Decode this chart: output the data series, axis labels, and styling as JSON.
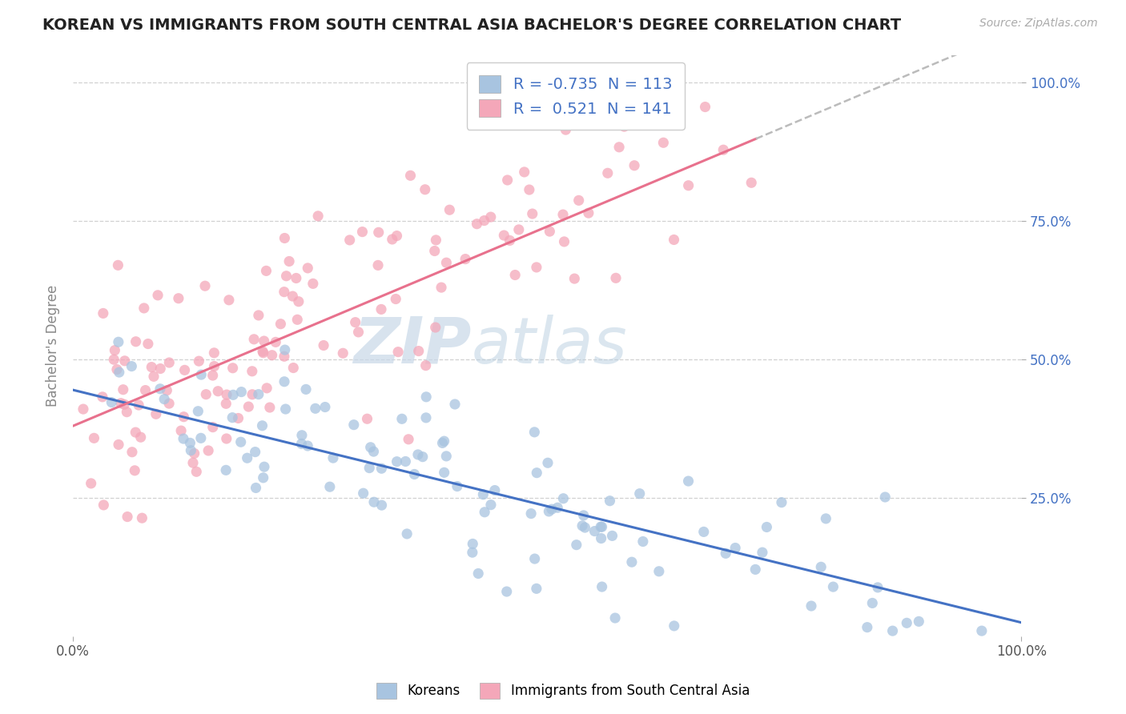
{
  "title": "KOREAN VS IMMIGRANTS FROM SOUTH CENTRAL ASIA BACHELOR'S DEGREE CORRELATION CHART",
  "source": "Source: ZipAtlas.com",
  "ylabel": "Bachelor's Degree",
  "xlim": [
    0.0,
    1.0
  ],
  "ylim": [
    0.0,
    1.05
  ],
  "korean_R": -0.735,
  "korean_N": 113,
  "sca_R": 0.521,
  "sca_N": 141,
  "korean_color": "#a8c4e0",
  "sca_color": "#f4a7b9",
  "korean_line_color": "#4472c4",
  "sca_line_color": "#e8718d",
  "dash_line_color": "#bbbbbb",
  "watermark_zip": "ZIP",
  "watermark_atlas": "atlas",
  "watermark_zip_color": "#c8d8e8",
  "watermark_atlas_color": "#b8cfe0",
  "legend_label_korean": "Koreans",
  "legend_label_sca": "Immigrants from South Central Asia",
  "background_color": "#ffffff",
  "grid_color": "#cccccc",
  "title_fontsize": 14,
  "source_fontsize": 10,
  "tick_color": "#4472c4",
  "ylabel_color": "#888888",
  "korean_intercept": 0.445,
  "korean_slope": -0.42,
  "sca_intercept": 0.38,
  "sca_slope": 0.72,
  "korean_noise": 0.07,
  "sca_noise": 0.1,
  "point_size": 90,
  "point_alpha": 0.75,
  "sca_line_end": 0.72
}
